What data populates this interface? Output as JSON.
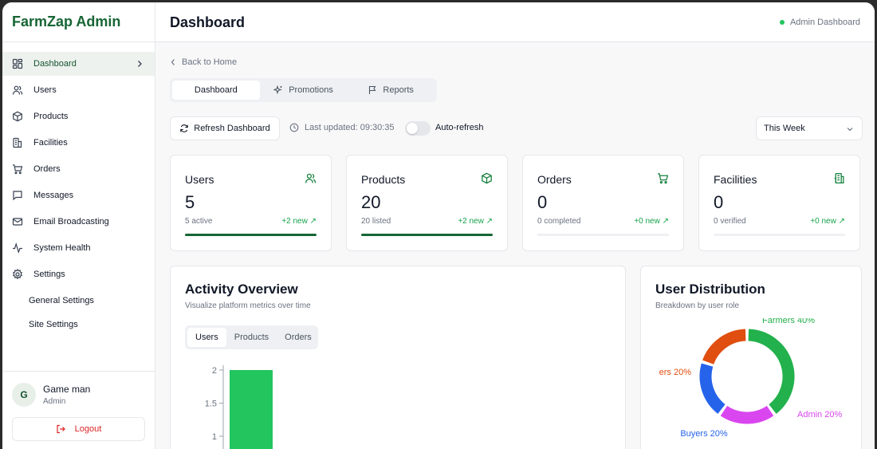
{
  "app": {
    "brand": "FarmZap Admin"
  },
  "sidebar": {
    "items": [
      {
        "label": "Dashboard",
        "icon": "dashboard-icon"
      },
      {
        "label": "Users",
        "icon": "users-icon"
      },
      {
        "label": "Products",
        "icon": "box-icon"
      },
      {
        "label": "Facilities",
        "icon": "building-icon"
      },
      {
        "label": "Orders",
        "icon": "cart-icon"
      },
      {
        "label": "Messages",
        "icon": "message-icon"
      },
      {
        "label": "Email Broadcasting",
        "icon": "mail-icon"
      },
      {
        "label": "System Health",
        "icon": "activity-icon"
      },
      {
        "label": "Settings",
        "icon": "gear-icon"
      }
    ],
    "sub_items": [
      "General Settings",
      "Site Settings"
    ],
    "user": {
      "initial": "G",
      "name": "Game man",
      "role": "Admin"
    },
    "logout_label": "Logout"
  },
  "header": {
    "title": "Dashboard",
    "status": "Admin Dashboard"
  },
  "back_label": "Back to Home",
  "tabs": [
    "Dashboard",
    "Promotions",
    "Reports"
  ],
  "toolbar": {
    "refresh_label": "Refresh Dashboard",
    "last_updated": "Last updated: 09:30:35",
    "auto_refresh_label": "Auto-refresh",
    "auto_refresh_on": false,
    "period": "This Week"
  },
  "stats": [
    {
      "label": "Users",
      "value": "5",
      "sub": "5 active",
      "new": "+2 new ↗",
      "progress": 1.0
    },
    {
      "label": "Products",
      "value": "20",
      "sub": "20 listed",
      "new": "+2 new ↗",
      "progress": 1.0
    },
    {
      "label": "Orders",
      "value": "0",
      "sub": "0 completed",
      "new": "+0 new ↗",
      "progress": 0
    },
    {
      "label": "Facilities",
      "value": "0",
      "sub": "0 verified",
      "new": "+0 new ↗",
      "progress": 0
    }
  ],
  "activity": {
    "title": "Activity Overview",
    "subtitle": "Visualize platform metrics over time",
    "tabs": [
      "Users",
      "Products",
      "Orders"
    ]
  },
  "distribution": {
    "title": "User Distribution",
    "subtitle": "Breakdown by user role"
  },
  "colors": {
    "brand": "#166534",
    "accent": "#22c55e",
    "danger": "#dc2626"
  },
  "chart_data": [
    {
      "type": "bar",
      "categories": [
        ""
      ],
      "values": [
        2
      ],
      "yticks": [
        "2",
        "1.5",
        "1"
      ],
      "color": "#22c55e"
    },
    {
      "type": "pie",
      "labels": [
        "Farmers 40%",
        "Admin 20%",
        "Buyers 20%",
        "ers 20%"
      ],
      "values": [
        40,
        20,
        20,
        20
      ],
      "colors": [
        "#22b14c",
        "#d946ef",
        "#2563eb",
        "#e04e10"
      ]
    }
  ]
}
